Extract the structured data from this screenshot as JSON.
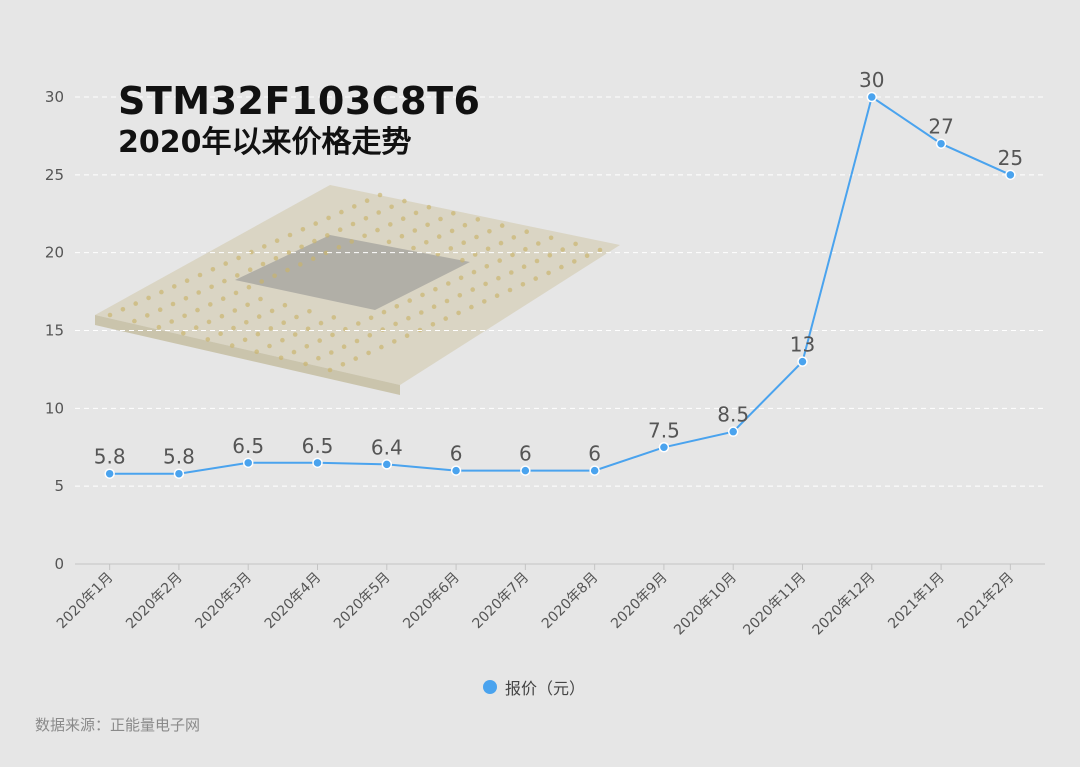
{
  "chart_data": {
    "type": "line",
    "title": "STM32F103C8T6",
    "subtitle": "2020年以来价格走势",
    "categories": [
      "2020年1月",
      "2020年2月",
      "2020年3月",
      "2020年4月",
      "2020年5月",
      "2020年6月",
      "2020年7月",
      "2020年8月",
      "2020年9月",
      "2020年10月",
      "2020年11月",
      "2020年12月",
      "2021年1月",
      "2021年2月"
    ],
    "series": [
      {
        "name": "报价（元）",
        "values": [
          5.8,
          5.8,
          6.5,
          6.5,
          6.4,
          6,
          6,
          6,
          7.5,
          8.5,
          13,
          30,
          27,
          25
        ],
        "labels": [
          "5.8",
          "5.8",
          "6.5",
          "6.5",
          "6.4",
          "6",
          "6",
          "6",
          "7.5",
          "8.5",
          "13",
          "30",
          "27",
          "25"
        ]
      }
    ],
    "xlabel": "",
    "ylabel": "",
    "ylim": [
      0,
      30
    ],
    "yticks": [
      "0",
      "5",
      "10",
      "15",
      "20",
      "25",
      "30"
    ],
    "grid": true,
    "legend_position": "bottom-center",
    "colors": {
      "line": "#4aa3ee",
      "marker": "#4aa3ee",
      "grid": "#ffffff",
      "text": "#555555"
    }
  },
  "legend": {
    "label": "报价（元）"
  },
  "source": "数据来源：正能量电子网"
}
